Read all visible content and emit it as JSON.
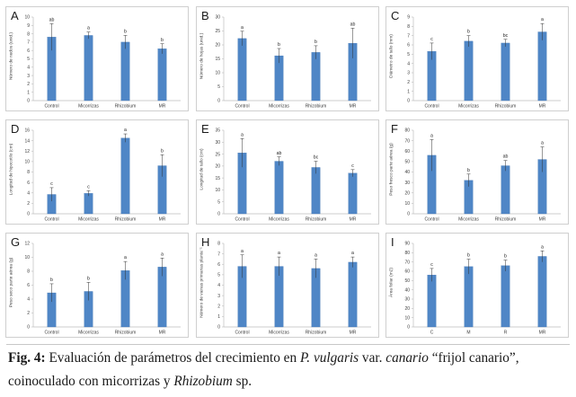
{
  "figure": {
    "caption": {
      "fig_label": "Fig. 4:",
      "text_1": " Evaluación de parámetros del crecimiento en ",
      "species": "P. vulgaris",
      "text_2": " var. ",
      "variety": "canario",
      "text_3": " “frijol canario”, coinoculado con micorrizas y ",
      "genus": "Rhizobium",
      "text_4": " sp."
    },
    "colors": {
      "bar": "#4f86c6",
      "bar_edge": "#3b70b0",
      "axis": "#bdbdbd",
      "text": "#404040"
    }
  },
  "chart_data": [
    {
      "type": "bar",
      "panel": "A",
      "ylabel": "Número de nudos (unid.)",
      "categories": [
        "Control",
        "Micorrizas",
        "Rhizobium",
        "MR"
      ],
      "values": [
        7.6,
        7.8,
        7.0,
        6.2
      ],
      "errors": [
        1.6,
        0.4,
        0.8,
        0.6
      ],
      "letters": [
        "ab",
        "a",
        "b",
        "b"
      ],
      "ylim": [
        0,
        10
      ],
      "yticks": [
        0,
        1,
        2,
        3,
        4,
        5,
        6,
        7,
        8,
        9,
        10
      ],
      "grid": false,
      "legend": "none"
    },
    {
      "type": "bar",
      "panel": "B",
      "ylabel": "Número de hojas (unid.)",
      "categories": [
        "Control",
        "Micorrizas",
        "Rhizobium",
        "MR"
      ],
      "values": [
        22.3,
        16.1,
        17.3,
        20.6
      ],
      "errors": [
        2.6,
        2.6,
        2.4,
        5.4
      ],
      "letters": [
        "a",
        "b",
        "b",
        "ab"
      ],
      "ylim": [
        0,
        30
      ],
      "yticks": [
        0,
        5,
        10,
        15,
        20,
        25,
        30
      ],
      "grid": false,
      "legend": "none"
    },
    {
      "type": "bar",
      "panel": "C",
      "ylabel": "Diámetro de tallo (mm)",
      "categories": [
        "Control",
        "Micorrizas",
        "Rhizobium",
        "MR"
      ],
      "values": [
        5.3,
        6.4,
        6.2,
        7.4
      ],
      "errors": [
        0.9,
        0.6,
        0.4,
        0.9
      ],
      "letters": [
        "c",
        "b",
        "bc",
        "a"
      ],
      "ylim": [
        0,
        9
      ],
      "yticks": [
        0,
        1,
        2,
        3,
        4,
        5,
        6,
        7,
        8,
        9
      ],
      "grid": false,
      "legend": "none"
    },
    {
      "type": "bar",
      "panel": "D",
      "ylabel": "Longitud de hipocotilo (cm)",
      "categories": [
        "Control",
        "Micorrizas",
        "Rhizobium",
        "MR"
      ],
      "values": [
        3.7,
        3.9,
        14.5,
        9.2
      ],
      "errors": [
        1.3,
        0.5,
        0.8,
        2.1
      ],
      "letters": [
        "c",
        "c",
        "a",
        "b"
      ],
      "ylim": [
        0,
        16
      ],
      "yticks": [
        0,
        2,
        4,
        6,
        8,
        10,
        12,
        14,
        16
      ],
      "grid": false,
      "legend": "none"
    },
    {
      "type": "bar",
      "panel": "E",
      "ylabel": "Longitud de tallo (cm)",
      "categories": [
        "Control",
        "Micorrizas",
        "Rhizobium",
        "MR"
      ],
      "values": [
        25.5,
        22.0,
        19.4,
        17.0
      ],
      "errors": [
        6.0,
        1.8,
        2.6,
        1.5
      ],
      "letters": [
        "a",
        "ab",
        "bc",
        "c"
      ],
      "ylim": [
        0,
        35
      ],
      "yticks": [
        0,
        5,
        10,
        15,
        20,
        25,
        30,
        35
      ],
      "grid": false,
      "legend": "none"
    },
    {
      "type": "bar",
      "panel": "F",
      "ylabel": "Peso fresco parte aérea (g)",
      "categories": [
        "Control",
        "Micorrizas",
        "Rhizobium",
        "MR"
      ],
      "values": [
        56,
        32,
        46,
        52
      ],
      "errors": [
        15,
        6,
        5,
        12
      ],
      "letters": [
        "a",
        "b",
        "ab",
        "a"
      ],
      "ylim": [
        0,
        80
      ],
      "yticks": [
        0,
        10,
        20,
        30,
        40,
        50,
        60,
        70,
        80
      ],
      "grid": false,
      "legend": "none"
    },
    {
      "type": "bar",
      "panel": "G",
      "ylabel": "Peso seco parte aérea (g)",
      "categories": [
        "Control",
        "Micorrizas",
        "Rhizobium",
        "MR"
      ],
      "values": [
        4.9,
        5.1,
        8.1,
        8.6
      ],
      "errors": [
        1.3,
        1.3,
        1.3,
        1.3
      ],
      "letters": [
        "b",
        "b",
        "a",
        "a"
      ],
      "ylim": [
        0,
        12
      ],
      "yticks": [
        0,
        2,
        4,
        6,
        8,
        10,
        12
      ],
      "grid": false,
      "legend": "none"
    },
    {
      "type": "bar",
      "panel": "H",
      "ylabel": "Número de vainas primarias planta⁻¹",
      "categories": [
        "Control",
        "Micorrizas",
        "Rhizobium",
        "MR"
      ],
      "values": [
        5.8,
        5.8,
        5.6,
        6.2
      ],
      "errors": [
        1.1,
        0.9,
        0.9,
        0.5
      ],
      "letters": [
        "a",
        "a",
        "a",
        "a"
      ],
      "ylim": [
        0,
        8
      ],
      "yticks": [
        0,
        1,
        2,
        3,
        4,
        5,
        6,
        7,
        8
      ],
      "grid": false,
      "legend": "none"
    },
    {
      "type": "bar",
      "panel": "I",
      "ylabel": "Área foliar (m2)",
      "categories": [
        "C",
        "M",
        "R",
        "MR"
      ],
      "values": [
        56,
        65,
        66,
        76
      ],
      "errors": [
        7,
        8,
        6,
        6
      ],
      "letters": [
        "c",
        "b",
        "b",
        "a"
      ],
      "ylim": [
        0,
        90
      ],
      "yticks": [
        0,
        10,
        20,
        30,
        40,
        50,
        60,
        70,
        80,
        90
      ],
      "grid": false,
      "legend": "none"
    }
  ]
}
